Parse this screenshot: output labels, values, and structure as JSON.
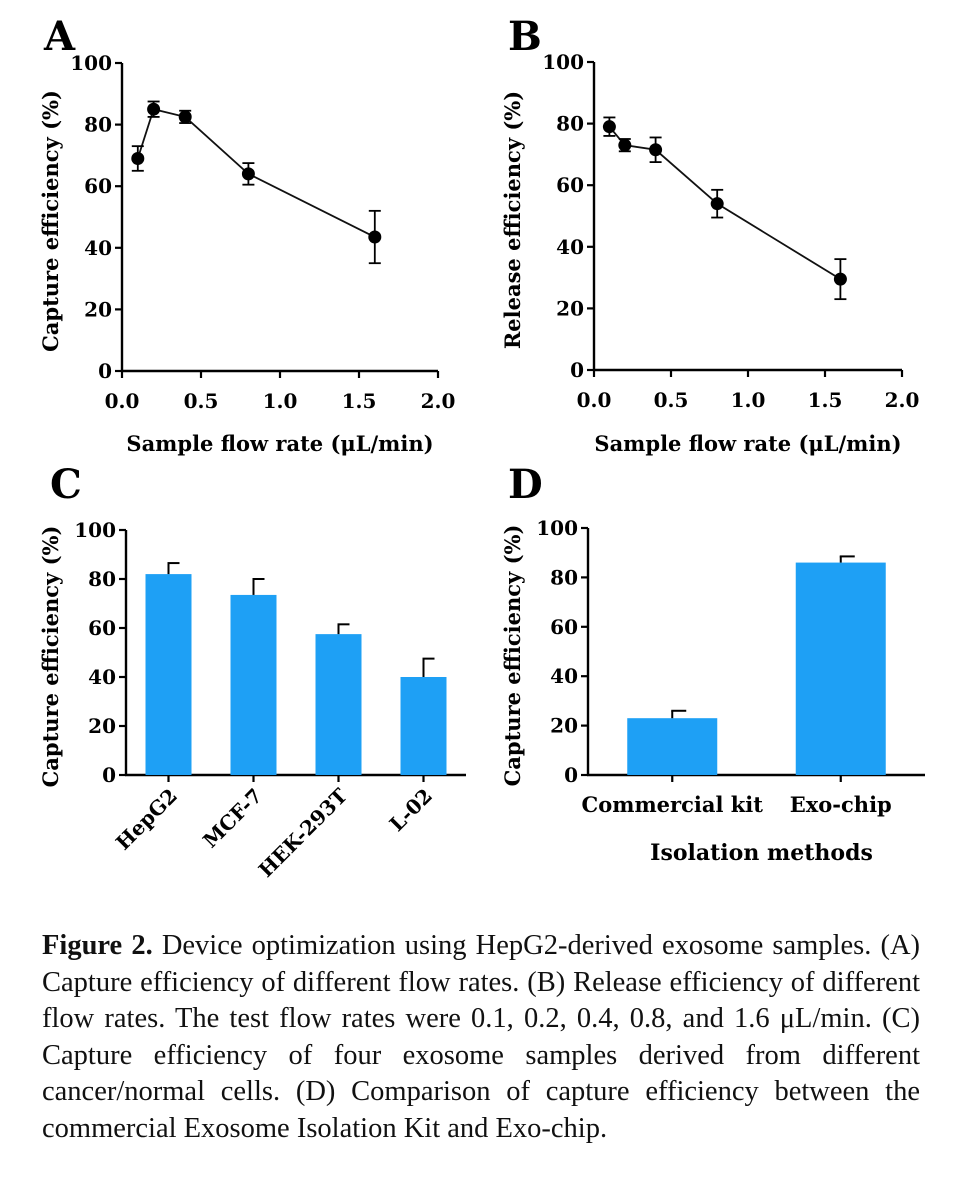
{
  "chart_data": [
    {
      "panel": "A",
      "type": "line",
      "xlabel": "Sample flow rate (μL/min)",
      "ylabel": "Capture efficiency (%)",
      "xlim": [
        0,
        2.0
      ],
      "ylim": [
        0,
        100
      ],
      "xticks": [
        "0.0",
        "0.5",
        "1.0",
        "1.5",
        "2.0"
      ],
      "yticks": [
        "0",
        "20",
        "40",
        "60",
        "80",
        "100"
      ],
      "x": [
        0.1,
        0.2,
        0.4,
        0.8,
        1.6
      ],
      "y": [
        69,
        85,
        82.5,
        64,
        43.5
      ],
      "err": [
        4,
        2.5,
        2,
        3.5,
        8.5
      ]
    },
    {
      "panel": "B",
      "type": "line",
      "xlabel": "Sample flow rate (μL/min)",
      "ylabel": "Release efficiency (%)",
      "xlim": [
        0,
        2.0
      ],
      "ylim": [
        0,
        100
      ],
      "xticks": [
        "0.0",
        "0.5",
        "1.0",
        "1.5",
        "2.0"
      ],
      "yticks": [
        "0",
        "20",
        "40",
        "60",
        "80",
        "100"
      ],
      "x": [
        0.1,
        0.2,
        0.4,
        0.8,
        1.6
      ],
      "y": [
        79,
        73,
        71.5,
        54,
        29.5
      ],
      "err": [
        3,
        2,
        4,
        4.5,
        6.5
      ]
    },
    {
      "panel": "C",
      "type": "bar",
      "xlabel": "",
      "ylabel": "Capture efficiency (%)",
      "ylim": [
        0,
        100
      ],
      "yticks": [
        "0",
        "20",
        "40",
        "60",
        "80",
        "100"
      ],
      "categories": [
        "HepG2",
        "MCF-7",
        "HEK-293T",
        "L-02"
      ],
      "values": [
        82,
        73.5,
        57.5,
        40
      ],
      "err": [
        4.5,
        6.5,
        4,
        7.5
      ],
      "bar_color": "#1ea0f5"
    },
    {
      "panel": "D",
      "type": "bar",
      "xlabel": "Isolation methods",
      "ylabel": "Capture efficiency (%)",
      "ylim": [
        0,
        100
      ],
      "yticks": [
        "0",
        "20",
        "40",
        "60",
        "80",
        "100"
      ],
      "categories": [
        "Commercial kit",
        "Exo-chip"
      ],
      "values": [
        23,
        86
      ],
      "err": [
        3,
        2.5
      ],
      "bar_color": "#1ea0f5"
    }
  ],
  "caption": {
    "label": "Figure 2.",
    "text": "Device optimization using HepG2-derived exosome samples. (A) Capture efficiency of different flow rates. (B) Release efficiency of different flow rates. The test flow rates were 0.1, 0.2, 0.4, 0.8, and 1.6 μL/min. (C) Capture efficiency of four exosome samples derived from different cancer/normal cells. (D) Comparison of capture efficiency between the commercial Exosome Isolation Kit and Exo-chip."
  }
}
